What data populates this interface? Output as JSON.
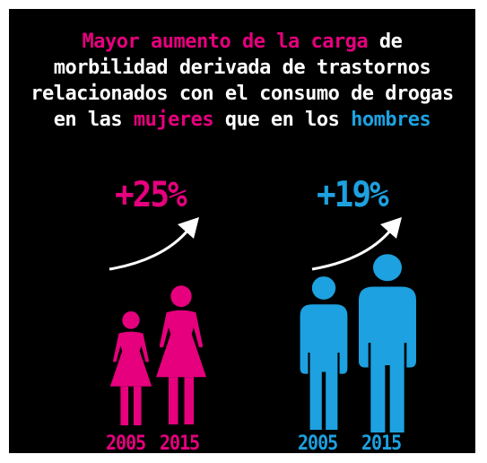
{
  "headline": {
    "line1_highlight": "Mayor aumento de la carga",
    "line1_rest": " de",
    "line2": "morbilidad derivada de trastornos",
    "line3": "relacionados con el consumo de drogas",
    "line4_pre": "en las ",
    "line4_women": "mujeres",
    "line4_mid": " que en los ",
    "line4_men": "hombres"
  },
  "women": {
    "increase": "+25%",
    "year_a": "2005",
    "year_b": "2015",
    "color": "#e6007e",
    "icon": "woman-icon"
  },
  "men": {
    "increase": "+19%",
    "year_a": "2005",
    "year_b": "2015",
    "color": "#1da1e0",
    "icon": "man-icon"
  },
  "arrow_icon": "curved-up-arrow-icon"
}
